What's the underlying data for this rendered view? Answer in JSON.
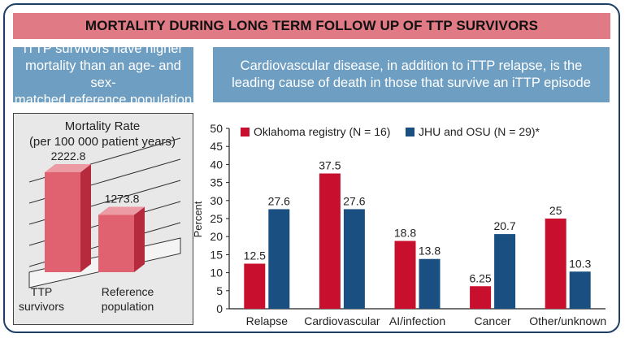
{
  "banner": {
    "title": "MORTALITY DURING LONG TERM FOLLOW UP OF TTP SURVIVORS"
  },
  "callouts": {
    "left": {
      "lines": [
        "iTTP survivors have higher",
        "mortality than an age- and sex-",
        "matched reference population"
      ]
    },
    "right": {
      "lines": [
        "Cardiovascular disease, in addition to iTTP relapse, is the",
        "leading cause of death in those that survive an iTTP episode"
      ]
    }
  },
  "colors": {
    "banner": "#e07b85",
    "callout": "#6e9ec1",
    "oklahoma": "#c8102e",
    "jhu_osu": "#1a4f82",
    "mortality_front": "#e06270",
    "mortality_side": "#b52a3d",
    "mortality_top": "#ec9aa3",
    "frame": "#1f3f66"
  },
  "chart_data": [
    {
      "type": "bar",
      "title": "Mortality Rate",
      "subtitle": "(per 100 000 patient years)",
      "categories": [
        "TTP survivors",
        "Reference population"
      ],
      "category_lines": [
        [
          "TTP",
          "survivors"
        ],
        [
          "Reference",
          "population"
        ]
      ],
      "values": [
        2222.8,
        1273.8
      ],
      "value_labels": [
        "2222.8",
        "1273.8"
      ],
      "ylim": [
        0,
        2800
      ],
      "grid": false,
      "style": "3d"
    },
    {
      "type": "bar",
      "title": "",
      "xlabel": "",
      "ylabel": "Percent",
      "ylim": [
        0,
        50
      ],
      "yticks": [
        0,
        5,
        10,
        15,
        20,
        25,
        30,
        35,
        40,
        45,
        50
      ],
      "categories": [
        "Relapse",
        "Cardiovascular",
        "AI/infection",
        "Cancer",
        "Other/unknown"
      ],
      "legend_position": "top",
      "series": [
        {
          "name": "Oklahoma registry (N = 16)",
          "values": [
            12.5,
            37.5,
            18.8,
            6.25,
            25
          ],
          "labels": [
            "12.5",
            "37.5",
            "18.8",
            "6.25",
            "25"
          ]
        },
        {
          "name": "JHU and OSU (N = 29)*",
          "values": [
            27.6,
            27.6,
            13.8,
            20.7,
            10.3
          ],
          "labels": [
            "27.6",
            "27.6",
            "13.8",
            "20.7",
            "10.3"
          ]
        }
      ]
    }
  ]
}
